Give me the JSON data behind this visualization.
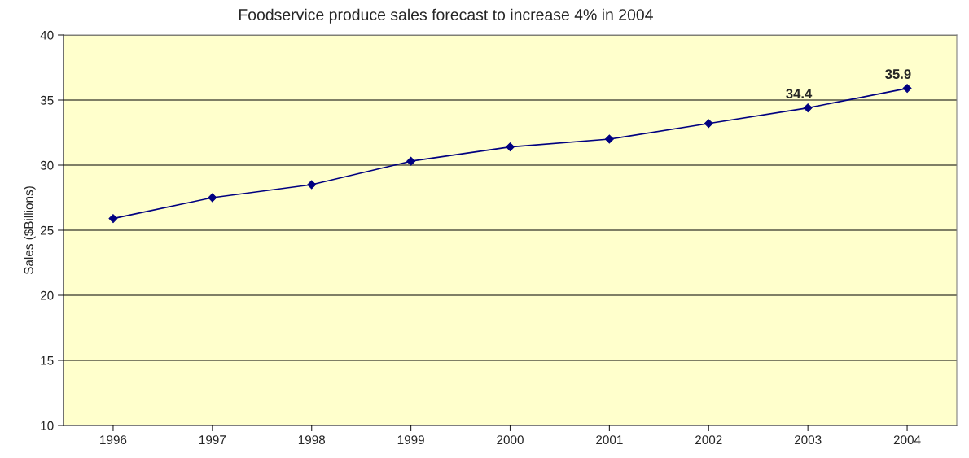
{
  "chart_data": {
    "type": "line",
    "title": "Foodservice produce sales forecast to increase 4% in 2004",
    "ylabel": "Sales ($Billions)",
    "categories": [
      "1996",
      "1997",
      "1998",
      "1999",
      "2000",
      "2001",
      "2002",
      "2003",
      "2004"
    ],
    "series": [
      {
        "color": "#000080",
        "values": [
          25.9,
          27.5,
          28.5,
          30.3,
          31.4,
          32.0,
          33.2,
          34.4,
          35.9
        ],
        "value_labels": [
          null,
          null,
          null,
          null,
          null,
          null,
          null,
          "34.4",
          "35.9"
        ]
      }
    ],
    "ylim": [
      10,
      40
    ],
    "yticks": [
      10,
      15,
      20,
      25,
      30,
      35,
      40
    ],
    "grid": "y",
    "marker": "diamond",
    "line_style": "solid",
    "legend": false
  }
}
